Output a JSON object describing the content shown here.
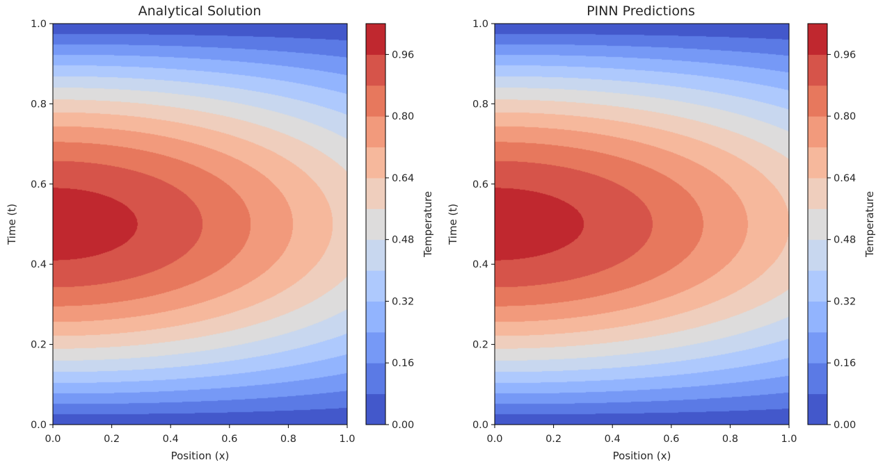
{
  "chart_data": [
    {
      "type": "heatmap",
      "title": "Analytical Solution",
      "xlabel": "Position (x)",
      "ylabel": "Time (t)",
      "xlim": [
        0.0,
        1.0
      ],
      "ylim": [
        0.0,
        1.0
      ],
      "x_ticks": [
        "0.0",
        "0.2",
        "0.4",
        "0.6",
        "0.8",
        "1.0"
      ],
      "y_ticks": [
        "0.0",
        "0.2",
        "0.4",
        "0.6",
        "0.8",
        "1.0"
      ],
      "plot_style": "filled-contour",
      "colormap": "coolwarm",
      "field": "sin(pi*t)*exp(-0.05*pi^2*x^2)",
      "peak_value": 1.0,
      "peak_at": {
        "x": 0.0,
        "t": 0.5
      },
      "colorbar": {
        "label": "Temperature",
        "levels": [
          0.0,
          0.08,
          0.16,
          0.24,
          0.32,
          0.4,
          0.48,
          0.56,
          0.64,
          0.72,
          0.8,
          0.88,
          0.96,
          1.04
        ],
        "colors": [
          "#4358cb",
          "#5b7ae5",
          "#7699f6",
          "#92b4fe",
          "#aec9fd",
          "#c8d7ef",
          "#dddcdc",
          "#efcebd",
          "#f6b89c",
          "#f29a7c",
          "#e7785d",
          "#d6544a",
          "#c0282f"
        ],
        "tick_labels": [
          "0.00",
          "0.16",
          "0.32",
          "0.48",
          "0.64",
          "0.80",
          "0.96"
        ]
      }
    },
    {
      "type": "heatmap",
      "title": "PINN Predictions",
      "xlabel": "Position (x)",
      "ylabel": "Time (t)",
      "xlim": [
        0.0,
        1.0
      ],
      "ylim": [
        0.0,
        1.0
      ],
      "x_ticks": [
        "0.0",
        "0.2",
        "0.4",
        "0.6",
        "0.8",
        "1.0"
      ],
      "y_ticks": [
        "0.0",
        "0.2",
        "0.4",
        "0.6",
        "0.8",
        "1.0"
      ],
      "plot_style": "filled-contour",
      "colormap": "coolwarm",
      "field": "sin(pi*t)*exp(-0.045*pi^2*x^2)",
      "peak_value": 1.0,
      "peak_at": {
        "x": 0.0,
        "t": 0.5
      },
      "colorbar": {
        "label": "Temperature",
        "levels": [
          0.0,
          0.08,
          0.16,
          0.24,
          0.32,
          0.4,
          0.48,
          0.56,
          0.64,
          0.72,
          0.8,
          0.88,
          0.96,
          1.04
        ],
        "colors": [
          "#4358cb",
          "#5b7ae5",
          "#7699f6",
          "#92b4fe",
          "#aec9fd",
          "#c8d7ef",
          "#dddcdc",
          "#efcebd",
          "#f6b89c",
          "#f29a7c",
          "#e7785d",
          "#d6544a",
          "#c0282f"
        ],
        "tick_labels": [
          "0.00",
          "0.16",
          "0.32",
          "0.48",
          "0.64",
          "0.80",
          "0.96"
        ]
      }
    }
  ]
}
